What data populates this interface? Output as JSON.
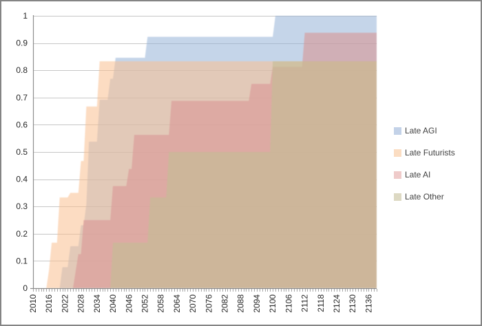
{
  "chart_data": {
    "type": "area",
    "title": "",
    "xlabel": "",
    "ylabel": "",
    "grid": true,
    "legend_position": "right",
    "x_axis": {
      "start": 2010,
      "end": 2139,
      "label_interval": 6,
      "tick_labels": [
        "2010",
        "2016",
        "2022",
        "2028",
        "2034",
        "2040",
        "2046",
        "2052",
        "2058",
        "2064",
        "2070",
        "2076",
        "2082",
        "2088",
        "2094",
        "2100",
        "2106",
        "2112",
        "2118",
        "2124",
        "2130",
        "2136"
      ]
    },
    "y_axis": {
      "min": 0,
      "max": 1,
      "step": 0.1,
      "tick_labels": [
        "1",
        "0.9",
        "0.8",
        "0.7",
        "0.6",
        "0.5",
        "0.4",
        "0.3",
        "0.2",
        "0.1",
        "0"
      ]
    },
    "series": [
      {
        "name": "Late AGI",
        "color": "#95B3D7",
        "opacity": 0.55,
        "steps": [
          [
            2021,
            0.077
          ],
          [
            2024,
            0.154
          ],
          [
            2028,
            0.231
          ],
          [
            2030,
            0.308
          ],
          [
            2031,
            0.538
          ],
          [
            2035,
            0.692
          ],
          [
            2039,
            0.769
          ],
          [
            2041,
            0.846
          ],
          [
            2053,
            0.923
          ],
          [
            2101,
            1.0
          ]
        ]
      },
      {
        "name": "Late Futurists",
        "color": "#FABF8F",
        "opacity": 0.55,
        "steps": [
          [
            2016,
            0.067
          ],
          [
            2017,
            0.167
          ],
          [
            2020,
            0.333
          ],
          [
            2024,
            0.35
          ],
          [
            2028,
            0.467
          ],
          [
            2030,
            0.667
          ],
          [
            2035,
            0.833
          ]
        ]
      },
      {
        "name": "Late AI",
        "color": "#D99694",
        "opacity": 0.6,
        "steps": [
          [
            2026,
            0.063
          ],
          [
            2027,
            0.125
          ],
          [
            2029,
            0.25
          ],
          [
            2040,
            0.375
          ],
          [
            2046,
            0.438
          ],
          [
            2048,
            0.563
          ],
          [
            2062,
            0.688
          ],
          [
            2092,
            0.75
          ],
          [
            2100,
            0.813
          ],
          [
            2112,
            0.938
          ]
        ]
      },
      {
        "name": "Late Other",
        "color": "#C4BD97",
        "opacity": 0.65,
        "steps": [
          [
            2040,
            0.167
          ],
          [
            2054,
            0.333
          ],
          [
            2061,
            0.5
          ],
          [
            2100,
            0.833
          ]
        ]
      }
    ],
    "colors": {
      "gridline": "#C6C6C6",
      "axis_line": "#8C8C8C",
      "tick": "#8C8C8C",
      "axis_text": "#262626"
    }
  },
  "legend": {
    "items": [
      {
        "label": "Late AGI",
        "swatch_color": "#C3D2E8"
      },
      {
        "label": "Late Futurists",
        "swatch_color": "#FBDDC2"
      },
      {
        "label": "Late AI",
        "swatch_color": "#EFCBCA"
      },
      {
        "label": "Late Other",
        "swatch_color": "#DDD9C3"
      }
    ]
  }
}
